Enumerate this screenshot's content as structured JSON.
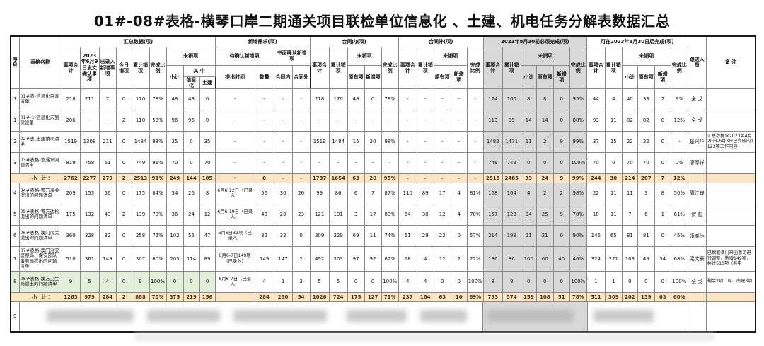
{
  "title": "01#-08#表格-横琴口岸二期通关项目联检单位信息化 、土建、机电任务分解表数据汇总",
  "header": {
    "seq": "序号",
    "name": "表格名称",
    "groups": {
      "summary": "汇总数据(项)",
      "new_demand": "新增需求(项)",
      "in_contract": "合同内(项)",
      "out_contract": "合同外(项)",
      "before": "2023年8月30前必须完成(项)",
      "after": "可在2023年8月30日后完成(项)"
    },
    "cols": {
      "item_total": "事项合计",
      "confirm_0609": "2023年6月9日发文确认事项",
      "entered_new": "已录入新增事项",
      "today_cleared": "今日销项",
      "cum_cleared": "累计销项",
      "completion": "完成比例",
      "uncleared": "未销项",
      "subtotal": "小计",
      "among": "其 中",
      "info": "信息化",
      "civil": "土建",
      "pending_new": "待确认新增项",
      "propose_time": "提出时间",
      "quantity": "数量",
      "written_new": "书面确认新增项",
      "in_c": "合同内",
      "out_c": "合同外",
      "orig": "原有项",
      "new": "新增项",
      "follower": "跟进人员",
      "remark": "备 注"
    }
  },
  "colors": {
    "section_gray": "#d9d9d9",
    "subtotal_tan": "#fbe5c2",
    "highlight_green": "#e2efda"
  },
  "table": {
    "rows": [
      {
        "type": "data",
        "cells": [
          "1",
          "01#表-信息化自查清单",
          "218",
          "211",
          "7",
          "0",
          "170",
          "78%",
          "48",
          "48",
          "0",
          "-",
          "-",
          "-",
          "-",
          "218",
          "170",
          "48",
          "0",
          "78%",
          "-",
          "-",
          "-",
          "-",
          "-",
          "174",
          "166",
          "8",
          "8",
          "0",
          "95%",
          "44",
          "4",
          "40",
          "33",
          "7",
          "9%",
          "全 戈",
          ""
        ]
      },
      {
        "type": "data",
        "cells": [
          "1",
          "01#-1-信息化未到货设备",
          "206",
          "-",
          "-",
          "2",
          "110",
          "53%",
          "96",
          "96",
          "0",
          "-",
          "-",
          "-",
          "-",
          "-",
          "-",
          "-",
          "-",
          "-",
          "-",
          "-",
          "-",
          "-",
          "-",
          "113",
          "99",
          "14",
          "14",
          "0",
          "88%",
          "93",
          "11",
          "82",
          "82",
          "0",
          "12%",
          "全 戈",
          ""
        ]
      },
      {
        "type": "data",
        "cells": [
          "2",
          "02#表-土建销项清单",
          "1519",
          "1308",
          "211",
          "0",
          "1484",
          "98%",
          "35",
          "0",
          "35",
          "-",
          "-",
          "-",
          "-",
          "1519",
          "1484",
          "15",
          "20",
          "98%",
          "-",
          "-",
          "-",
          "-",
          "-",
          "1482",
          "1471",
          "11",
          "2",
          "9",
          "99%",
          "37",
          "15",
          "22",
          "22",
          "0",
          "-",
          "楚兴华",
          "汇总数据含2023年4月20日-6月3日已完成的1123项工作内容"
        ]
      },
      {
        "type": "data",
        "cells": [
          "3",
          "03#表格-渗漏水问题清单",
          "819",
          "758",
          "61",
          "0",
          "749",
          "91%",
          "70",
          "0",
          "70",
          "-",
          "-",
          "-",
          "-",
          "-",
          "-",
          "-",
          "-",
          "-",
          "-",
          "-",
          "-",
          "-",
          "-",
          "749",
          "749",
          "0",
          "0",
          "0",
          "100%",
          "70",
          "0",
          "70",
          "70",
          "0",
          "0%",
          "廖厚祥",
          ""
        ]
      },
      {
        "type": "subtotal",
        "label": "小  计：",
        "cells": [
          "2762",
          "2277",
          "279",
          "2",
          "2513",
          "91%",
          "249",
          "144",
          "105",
          "-",
          "0",
          "-",
          "-",
          "1737",
          "1654",
          "63",
          "20",
          "95%",
          "-",
          "-",
          "-",
          "-",
          "-",
          "2518",
          "2485",
          "33",
          "24",
          "9",
          "99%",
          "244",
          "30",
          "214",
          "207",
          "7",
          "12%",
          "",
          ""
        ]
      },
      {
        "type": "data",
        "cells": [
          "4",
          "04#表格-粤方海关提出的问题清单",
          "209",
          "153",
          "56",
          "0",
          "175",
          "84%",
          "34",
          "26",
          "8",
          "6月6-12日（已录入）",
          "56",
          "30",
          "26",
          "99",
          "86",
          "6",
          "7",
          "87%",
          "110",
          "89",
          "17",
          "4",
          "81%",
          "168",
          "164",
          "4",
          "2",
          "2",
          "98%",
          "22",
          "11",
          "11",
          "3",
          "8",
          "50%",
          "周江锋",
          ""
        ]
      },
      {
        "type": "data",
        "cells": [
          "5",
          "05#表格-粤方边检提出的问题清单",
          "175",
          "132",
          "43",
          "2",
          "139",
          "79%",
          "36",
          "24",
          "12",
          "6月6-19日（已录入）",
          "43",
          "20",
          "23",
          "121",
          "101",
          "3",
          "17",
          "83%",
          "54",
          "38",
          "12",
          "4",
          "70%",
          "157",
          "123",
          "34",
          "25",
          "9",
          "78%",
          "18",
          "11",
          "7",
          "6",
          "1",
          "61%",
          "贺 彪",
          ""
        ]
      },
      {
        "type": "data",
        "cells": [
          "6",
          "06#表格-澳门海关提出的问题清单",
          "360",
          "328",
          "32",
          "0",
          "258",
          "72%",
          "102",
          "55",
          "47",
          "6月6日32项（已录入）",
          "32",
          "32",
          "0",
          "309",
          "229",
          "69",
          "11",
          "74%",
          "51",
          "29",
          "22",
          "0",
          "57%",
          "214",
          "193",
          "21",
          "21",
          "0",
          "90%",
          "146",
          "65",
          "81",
          "81",
          "0",
          "45%",
          "张家乐",
          ""
        ]
      },
      {
        "type": "data",
        "tall": true,
        "cells": [
          "7",
          "07#表格-澳门治安警察局、保安部队事务局提出的问题清单",
          "510",
          "361",
          "149",
          "0",
          "307",
          "60%",
          "203",
          "114",
          "89",
          "6月6-7日149项（已录入）",
          "149",
          "147",
          "2",
          "492",
          "303",
          "97",
          "92",
          "62%",
          "18",
          "4",
          "12",
          "2",
          "22%",
          "186",
          "86",
          "100",
          "60",
          "40",
          "46%",
          "324",
          "221",
          "103",
          "49",
          "54",
          "68%",
          "梁文豪",
          "已根据澳门来函意见进行调整，新增149项，共计510项（其中"
        ]
      },
      {
        "type": "data",
        "green": true,
        "cells": [
          "8",
          "08#表格-澳方卫生局提出的问题清单",
          "9",
          "5",
          "4",
          "0",
          "9",
          "100%",
          "0",
          "0",
          "0",
          "6月6-7日（已录入）",
          "4",
          "1",
          "3",
          "5",
          "5",
          "0",
          "0",
          "100%",
          "4",
          "4",
          "0",
          "0",
          "100%",
          "8",
          "8",
          "0",
          "0",
          "0",
          "100%",
          "1",
          "1",
          "0",
          "0",
          "0",
          "100%",
          "全 戈",
          "剩余2项二局、南建3项"
        ]
      },
      {
        "type": "subtotal",
        "label": "小  计：",
        "cells": [
          "1263",
          "979",
          "284",
          "2",
          "888",
          "70%",
          "375",
          "219",
          "156",
          "",
          "284",
          "230",
          "54",
          "1026",
          "724",
          "175",
          "127",
          "71%",
          "237",
          "164",
          "63",
          "10",
          "69%",
          "733",
          "574",
          "159",
          "108",
          "51",
          "78%",
          "511",
          "309",
          "202",
          "139",
          "63",
          "60%",
          "",
          ""
        ]
      },
      {
        "type": "blur",
        "cells": [
          "9"
        ]
      }
    ]
  }
}
